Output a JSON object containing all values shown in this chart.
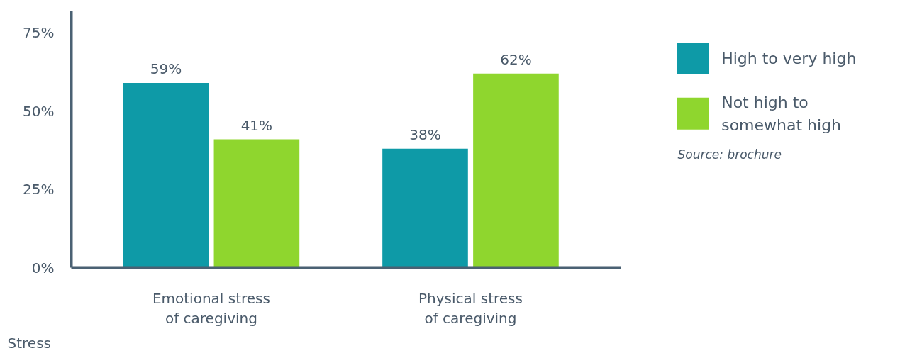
{
  "chart_data": {
    "type": "bar",
    "xlabel": "Stress",
    "categories": [
      "Emotional stress of caregiving",
      "Physical stress of caregiving"
    ],
    "series": [
      {
        "name": "High to very high",
        "color": "#0e9aa7",
        "values": [
          59,
          38
        ],
        "value_labels": [
          "59%",
          "38%"
        ]
      },
      {
        "name": "Not high to somewhat high",
        "color": "#8fd62e",
        "values": [
          41,
          62
        ],
        "value_labels": [
          "41%",
          "62%"
        ]
      }
    ],
    "ylim": [
      0,
      82
    ],
    "yticks": [
      {
        "value": 0,
        "label": "0%"
      },
      {
        "value": 25,
        "label": "25%"
      },
      {
        "value": 50,
        "label": "50%"
      },
      {
        "value": 75,
        "label": "75%"
      }
    ],
    "grid": false,
    "legend": "right",
    "annotations": [
      "Source: brochure"
    ]
  }
}
